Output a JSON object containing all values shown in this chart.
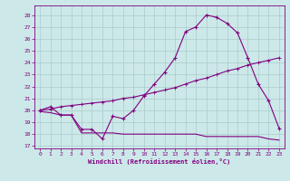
{
  "xlabel": "Windchill (Refroidissement éolien,°C)",
  "bg_color": "#cce8e8",
  "line_color": "#800080",
  "grid_color": "#aacccc",
  "x_ticks": [
    0,
    1,
    2,
    3,
    4,
    5,
    6,
    7,
    8,
    9,
    10,
    11,
    12,
    13,
    14,
    15,
    16,
    17,
    18,
    19,
    20,
    21,
    22,
    23
  ],
  "y_ticks": [
    17,
    18,
    19,
    20,
    21,
    22,
    23,
    24,
    25,
    26,
    27,
    28
  ],
  "ylim": [
    16.8,
    28.8
  ],
  "xlim": [
    -0.5,
    23.5
  ],
  "series1_x": [
    0,
    1,
    2,
    3,
    4,
    5,
    6,
    7,
    8,
    9,
    10,
    11,
    12,
    13,
    14,
    15,
    16,
    17,
    18,
    19,
    20,
    21,
    22,
    23
  ],
  "series1_y": [
    20.0,
    20.3,
    19.6,
    19.6,
    18.4,
    18.4,
    17.6,
    19.5,
    19.3,
    20.0,
    21.2,
    22.2,
    23.2,
    24.4,
    26.6,
    27.0,
    28.0,
    27.8,
    27.3,
    26.5,
    24.4,
    22.2,
    20.8,
    18.5
  ],
  "series2_x": [
    0,
    1,
    2,
    3,
    4,
    5,
    6,
    7,
    8,
    9,
    10,
    11,
    12,
    13,
    14,
    15,
    16,
    17,
    18,
    19,
    20,
    21,
    22,
    23
  ],
  "series2_y": [
    20.0,
    20.1,
    20.3,
    20.4,
    20.5,
    20.6,
    20.7,
    20.8,
    21.0,
    21.1,
    21.3,
    21.5,
    21.7,
    21.9,
    22.2,
    22.5,
    22.7,
    23.0,
    23.3,
    23.5,
    23.8,
    24.0,
    24.2,
    24.4
  ],
  "series3_x": [
    0,
    1,
    2,
    3,
    4,
    5,
    6,
    7,
    8,
    9,
    10,
    11,
    12,
    13,
    14,
    15,
    16,
    17,
    18,
    19,
    20,
    21,
    22,
    23
  ],
  "series3_y": [
    19.9,
    19.8,
    19.6,
    19.6,
    18.1,
    18.1,
    18.1,
    18.1,
    18.0,
    18.0,
    18.0,
    18.0,
    18.0,
    18.0,
    18.0,
    18.0,
    17.8,
    17.8,
    17.8,
    17.8,
    17.8,
    17.8,
    17.6,
    17.5
  ]
}
